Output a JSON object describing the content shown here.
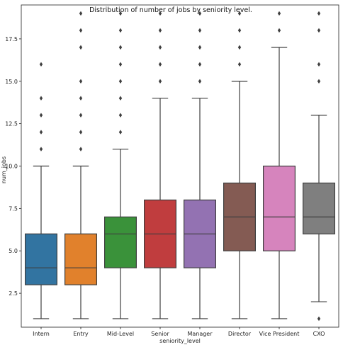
{
  "chart_data": {
    "type": "box",
    "title": "Distribution of number of jobs by seniority level.",
    "xlabel": "seniority_level",
    "ylabel": "num_jobs",
    "ylim": [
      0.5,
      19.5
    ],
    "yticks": [
      2.5,
      5.0,
      7.5,
      10.0,
      12.5,
      15.0,
      17.5
    ],
    "ytick_labels": [
      "2.5",
      "5.0",
      "7.5",
      "10.0",
      "12.5",
      "15.0",
      "17.5"
    ],
    "grid": false,
    "categories": [
      "Intern",
      "Entry",
      "Mid-Level",
      "Senior",
      "Manager",
      "Director",
      "Vice President",
      "CXO"
    ],
    "boxes": [
      {
        "category": "Intern",
        "color": "#3274a1",
        "min": 1,
        "q1": 3,
        "median": 4,
        "q3": 6,
        "max": 10,
        "outliers": [
          11,
          12,
          13,
          14,
          16
        ]
      },
      {
        "category": "Entry",
        "color": "#e1812c",
        "min": 1,
        "q1": 3,
        "median": 4,
        "q3": 6,
        "max": 10,
        "outliers": [
          11,
          12,
          13,
          14,
          15,
          17,
          18,
          19
        ]
      },
      {
        "category": "Mid-Level",
        "color": "#3a923a",
        "min": 1,
        "q1": 4,
        "median": 6,
        "q3": 7,
        "max": 11,
        "outliers": [
          12,
          13,
          14,
          15,
          16,
          17,
          18,
          19
        ]
      },
      {
        "category": "Senior",
        "color": "#c03d3e",
        "min": 1,
        "q1": 4,
        "median": 6,
        "q3": 8,
        "max": 14,
        "outliers": [
          15,
          16,
          17,
          18,
          19
        ]
      },
      {
        "category": "Manager",
        "color": "#9372b2",
        "min": 1,
        "q1": 4,
        "median": 6,
        "q3": 8,
        "max": 14,
        "outliers": [
          15,
          16,
          17,
          18,
          19
        ]
      },
      {
        "category": "Director",
        "color": "#845b53",
        "min": 1,
        "q1": 5,
        "median": 7,
        "q3": 9,
        "max": 15,
        "outliers": [
          16,
          17,
          18,
          19
        ]
      },
      {
        "category": "Vice President",
        "color": "#d684bd",
        "min": 1,
        "q1": 5,
        "median": 7,
        "q3": 10,
        "max": 17,
        "outliers": [
          18,
          19
        ]
      },
      {
        "category": "CXO",
        "color": "#7f7f7f",
        "min": 2,
        "q1": 6,
        "median": 7,
        "q3": 9,
        "max": 13,
        "outliers": [
          1,
          15,
          16,
          18,
          19
        ]
      }
    ]
  }
}
